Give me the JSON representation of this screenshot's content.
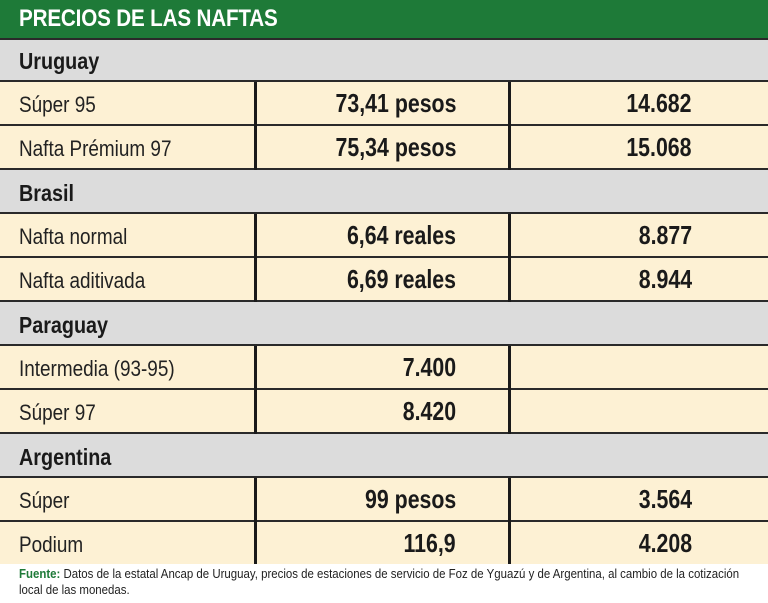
{
  "header": {
    "title": "PRECIOS DE LAS NAFTAS"
  },
  "sections": [
    {
      "name": "Uruguay",
      "rows": [
        {
          "label": "Súper 95",
          "local": "73,41 pesos",
          "converted": "14.682"
        },
        {
          "label": "Nafta Prémium 97",
          "local": "75,34 pesos",
          "converted": "15.068"
        }
      ]
    },
    {
      "name": "Brasil",
      "rows": [
        {
          "label": "Nafta normal",
          "local": "6,64 reales",
          "converted": "8.877"
        },
        {
          "label": "Nafta aditivada",
          "local": "6,69 reales",
          "converted": "8.944"
        }
      ]
    },
    {
      "name": "Paraguay",
      "rows": [
        {
          "label": "Intermedia (93-95)",
          "local": "7.400",
          "converted": ""
        },
        {
          "label": "Súper 97",
          "local": "8.420",
          "converted": ""
        }
      ]
    },
    {
      "name": "Argentina",
      "rows": [
        {
          "label": "Súper",
          "local": "99 pesos",
          "converted": "3.564"
        },
        {
          "label": "Podium",
          "local": "116,9",
          "converted": "4.208"
        }
      ]
    }
  ],
  "footer": {
    "label": "Fuente:",
    "text": "Datos de la estatal Ancap de Uruguay, precios de estaciones de servicio de Foz de Yguazú y de Argentina, al cambio de la cotización local de las monedas."
  }
}
